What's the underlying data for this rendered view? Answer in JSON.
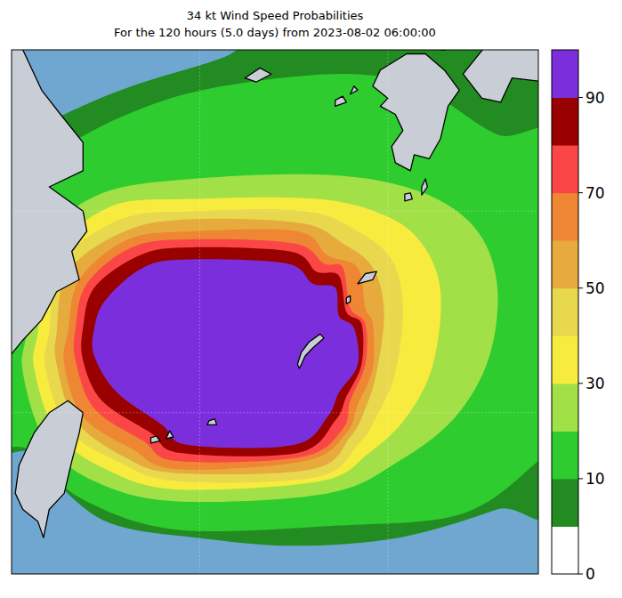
{
  "chart_data": {
    "type": "filled_contour_map",
    "title": "34 kt Wind Speed Probabilities",
    "subtitle": "For the 120 hours (5.0 days) from 2023-08-02 06:00:00",
    "xlim": [
      120,
      134
    ],
    "ylim": [
      21,
      34
    ],
    "xticks": [
      125,
      130
    ],
    "yticks": [
      25,
      30
    ],
    "grid": true,
    "tick_labels": false,
    "colorbar": {
      "levels": [
        0,
        5,
        10,
        20,
        30,
        40,
        50,
        60,
        70,
        80,
        90,
        100
      ],
      "colors": [
        "#ffffff",
        "#228b22",
        "#2ecc2e",
        "#a2e048",
        "#f7ec3e",
        "#e8d84e",
        "#e6ab3c",
        "#ee8634",
        "#fa4646",
        "#990000",
        "#7b2fdc"
      ],
      "ticks": [
        0,
        10,
        30,
        50,
        70,
        90
      ]
    },
    "contours": [
      {
        "level": 5,
        "points": [
          [
            119.0,
            31.3
          ],
          [
            121.4,
            32.4
          ],
          [
            123.2,
            33.1
          ],
          [
            125.6,
            33.8
          ],
          [
            126.8,
            34.4
          ],
          [
            129.6,
            34.4
          ],
          [
            132.0,
            34.4
          ],
          [
            134.8,
            33.9
          ],
          [
            134.8,
            23.3
          ],
          [
            132.9,
            22.6
          ],
          [
            130.3,
            21.9
          ],
          [
            127.5,
            21.7
          ],
          [
            124.9,
            21.9
          ],
          [
            122.8,
            22.2
          ],
          [
            121.6,
            22.9
          ],
          [
            120.6,
            24.0
          ],
          [
            119.0,
            24.6
          ]
        ]
      },
      {
        "level": 10,
        "points": [
          [
            119.0,
            28.6
          ],
          [
            119.9,
            30.4
          ],
          [
            121.6,
            31.7
          ],
          [
            123.9,
            32.7
          ],
          [
            126.3,
            33.2
          ],
          [
            129.1,
            33.4
          ],
          [
            131.0,
            33.0
          ],
          [
            132.9,
            31.9
          ],
          [
            134.8,
            31.5
          ],
          [
            134.8,
            24.6
          ],
          [
            134.0,
            23.8
          ],
          [
            132.0,
            22.5
          ],
          [
            128.7,
            22.2
          ],
          [
            124.4,
            22.1
          ],
          [
            121.8,
            22.9
          ],
          [
            120.4,
            24.1
          ],
          [
            119.0,
            24.4
          ]
        ]
      },
      {
        "level": 20,
        "points": [
          [
            120.4,
            27.0
          ],
          [
            120.7,
            29.1
          ],
          [
            122.3,
            30.4
          ],
          [
            124.8,
            30.8
          ],
          [
            128.4,
            30.9
          ],
          [
            130.8,
            30.5
          ],
          [
            132.3,
            29.6
          ],
          [
            132.9,
            28.2
          ],
          [
            132.7,
            26.4
          ],
          [
            131.8,
            24.9
          ],
          [
            130.3,
            23.8
          ],
          [
            128.4,
            23.0
          ],
          [
            124.4,
            22.8
          ],
          [
            122.2,
            23.3
          ],
          [
            120.9,
            24.3
          ],
          [
            120.3,
            26.0
          ]
        ]
      },
      {
        "level": 30,
        "points": [
          [
            120.7,
            27.0
          ],
          [
            121.0,
            28.8
          ],
          [
            122.6,
            30.1
          ],
          [
            124.8,
            30.3
          ],
          [
            128.1,
            30.3
          ],
          [
            129.9,
            29.9
          ],
          [
            130.9,
            29.2
          ],
          [
            131.4,
            28.0
          ],
          [
            131.2,
            26.2
          ],
          [
            130.5,
            24.9
          ],
          [
            129.5,
            24.0
          ],
          [
            128.2,
            23.3
          ],
          [
            124.4,
            23.1
          ],
          [
            122.5,
            23.6
          ],
          [
            121.2,
            24.5
          ],
          [
            120.6,
            26.1
          ]
        ]
      },
      {
        "level": 40,
        "points": [
          [
            121.0,
            27.0
          ],
          [
            121.3,
            28.7
          ],
          [
            122.9,
            29.8
          ],
          [
            124.8,
            30.0
          ],
          [
            127.8,
            30.0
          ],
          [
            129.2,
            29.5
          ],
          [
            130.1,
            28.8
          ],
          [
            130.4,
            27.6
          ],
          [
            130.2,
            26.0
          ],
          [
            129.7,
            24.9
          ],
          [
            129.2,
            24.2
          ],
          [
            128.1,
            23.4
          ],
          [
            124.4,
            23.3
          ],
          [
            122.8,
            23.8
          ],
          [
            121.5,
            24.6
          ],
          [
            120.9,
            26.1
          ]
        ]
      },
      {
        "level": 50,
        "points": [
          [
            121.2,
            27.0
          ],
          [
            121.5,
            28.5
          ],
          [
            123.0,
            29.5
          ],
          [
            124.8,
            29.8
          ],
          [
            127.7,
            29.7
          ],
          [
            128.8,
            29.2
          ],
          [
            129.6,
            28.6
          ],
          [
            129.9,
            27.5
          ],
          [
            129.7,
            26.0
          ],
          [
            129.4,
            25.1
          ],
          [
            129.0,
            24.4
          ],
          [
            128.0,
            23.6
          ],
          [
            124.4,
            23.5
          ],
          [
            123.0,
            23.9
          ],
          [
            121.7,
            24.8
          ],
          [
            121.2,
            26.2
          ]
        ]
      },
      {
        "level": 60,
        "points": [
          [
            121.5,
            27.0
          ],
          [
            121.8,
            28.3
          ],
          [
            123.1,
            29.3
          ],
          [
            124.8,
            29.5
          ],
          [
            127.6,
            29.5
          ],
          [
            128.4,
            28.9
          ],
          [
            129.2,
            28.6
          ],
          [
            129.4,
            27.6
          ],
          [
            129.6,
            27.2
          ],
          [
            129.6,
            26.1
          ],
          [
            129.2,
            25.2
          ],
          [
            128.9,
            24.5
          ],
          [
            127.8,
            23.8
          ],
          [
            124.4,
            23.6
          ],
          [
            123.2,
            24.1
          ],
          [
            121.9,
            24.9
          ],
          [
            121.4,
            26.2
          ]
        ]
      },
      {
        "level": 70,
        "points": [
          [
            121.7,
            27.1
          ],
          [
            122.0,
            28.2
          ],
          [
            123.2,
            29.1
          ],
          [
            124.7,
            29.3
          ],
          [
            127.5,
            29.2
          ],
          [
            128.3,
            28.7
          ],
          [
            128.8,
            28.6
          ],
          [
            129.0,
            27.6
          ],
          [
            129.4,
            27.2
          ],
          [
            129.4,
            26.2
          ],
          [
            129.0,
            25.3
          ],
          [
            128.8,
            24.6
          ],
          [
            127.7,
            23.9
          ],
          [
            124.4,
            23.8
          ],
          [
            123.5,
            24.3
          ],
          [
            122.2,
            25.1
          ],
          [
            121.7,
            26.3
          ]
        ]
      },
      {
        "level": 80,
        "points": [
          [
            121.9,
            27.1
          ],
          [
            122.2,
            28.1
          ],
          [
            123.4,
            28.9
          ],
          [
            124.7,
            29.1
          ],
          [
            127.4,
            29.0
          ],
          [
            128.1,
            28.5
          ],
          [
            128.7,
            28.4
          ],
          [
            128.9,
            27.5
          ],
          [
            129.3,
            27.2
          ],
          [
            129.3,
            26.2
          ],
          [
            128.9,
            25.4
          ],
          [
            128.6,
            24.8
          ],
          [
            127.6,
            24.0
          ],
          [
            124.5,
            24.0
          ],
          [
            123.7,
            24.5
          ],
          [
            122.4,
            25.3
          ],
          [
            121.9,
            26.3
          ]
        ]
      },
      {
        "level": 90,
        "points": [
          [
            122.2,
            27.1
          ],
          [
            122.5,
            27.8
          ],
          [
            123.5,
            28.6
          ],
          [
            124.7,
            28.8
          ],
          [
            127.3,
            28.7
          ],
          [
            128.0,
            28.2
          ],
          [
            128.6,
            28.1
          ],
          [
            128.7,
            27.4
          ],
          [
            129.1,
            27.1
          ],
          [
            129.2,
            26.2
          ],
          [
            128.7,
            25.5
          ],
          [
            128.4,
            24.9
          ],
          [
            127.5,
            24.2
          ],
          [
            124.7,
            24.2
          ],
          [
            124.0,
            24.7
          ],
          [
            122.8,
            25.5
          ],
          [
            122.2,
            26.4
          ]
        ]
      }
    ]
  }
}
